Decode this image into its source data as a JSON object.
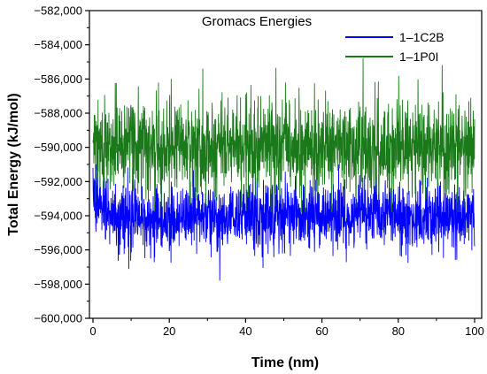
{
  "chart_data": {
    "type": "line",
    "title": "Gromacs Energies",
    "xlabel": "Time (nm)",
    "ylabel": "Total Energy (kJ/mol)",
    "xlim": [
      0,
      100
    ],
    "ylim": [
      -600000,
      -582000
    ],
    "x_ticks": [
      0,
      20,
      40,
      60,
      80,
      100
    ],
    "x_tick_labels": [
      "0",
      "20",
      "40",
      "60",
      "80",
      "100"
    ],
    "y_ticks": [
      -600000,
      -598000,
      -596000,
      -594000,
      -592000,
      -590000,
      -588000,
      -586000,
      -584000,
      -582000
    ],
    "y_tick_labels": [
      "−600,000",
      "−598,000",
      "−596,000",
      "−594,000",
      "−592,000",
      "−590,000",
      "−588,000",
      "−586,000",
      "−584,000",
      "−582,000"
    ],
    "grid": false,
    "legend_position": "top-right",
    "series": [
      {
        "name": "1–1C2B",
        "color": "#0000ff",
        "mean": -594000,
        "fluctuation_min": -597800,
        "fluctuation_max": -591000,
        "start_value": -591200,
        "x": [
          0,
          5,
          10,
          15,
          20,
          25,
          30,
          35,
          40,
          45,
          50,
          55,
          60,
          65,
          70,
          75,
          80,
          85,
          90,
          95,
          100
        ],
        "values": [
          -592500,
          -594200,
          -593800,
          -594100,
          -594300,
          -593900,
          -594000,
          -594200,
          -593800,
          -594100,
          -593900,
          -594000,
          -594200,
          -593900,
          -594100,
          -593800,
          -594000,
          -594200,
          -593900,
          -594100,
          -594000
        ]
      },
      {
        "name": "1–1P0I",
        "color": "#1a7a1a",
        "mean": -590000,
        "fluctuation_min": -593800,
        "fluctuation_max": -584200,
        "x": [
          0,
          5,
          10,
          15,
          20,
          25,
          30,
          35,
          40,
          45,
          50,
          55,
          60,
          65,
          70,
          75,
          80,
          85,
          90,
          95,
          100
        ],
        "values": [
          -589500,
          -590000,
          -589800,
          -590100,
          -589900,
          -590000,
          -590100,
          -589900,
          -590000,
          -590200,
          -589900,
          -590000,
          -590100,
          -589800,
          -590000,
          -590100,
          -589900,
          -590000,
          -590200,
          -589900,
          -590000
        ]
      }
    ]
  }
}
